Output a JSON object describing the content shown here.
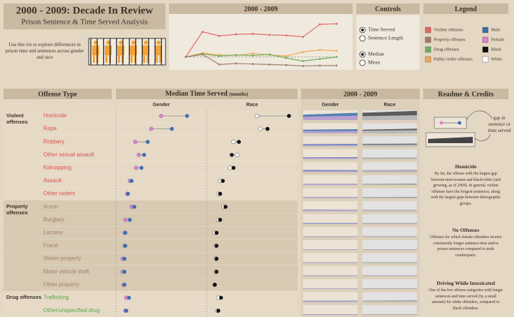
{
  "header": {
    "title": "2000 - 2009: Decade In Review",
    "subtitle": "Prison Sentence & Time Served Analysis",
    "description": "Use this viz to explore differences in prison time and sentences across gender and race"
  },
  "trend": {
    "title": "2000 - 2009",
    "ylim": [
      0,
      100
    ],
    "series": [
      {
        "color": "#e06666",
        "values": [
          20,
          70,
          62,
          65,
          66,
          64,
          63,
          60,
          85,
          86
        ]
      },
      {
        "color": "#f2a65a",
        "values": [
          20,
          28,
          24,
          23,
          27,
          24,
          22,
          30,
          34,
          32
        ]
      },
      {
        "color": "#6aaf5a",
        "values": [
          20,
          26,
          22,
          24,
          23,
          25,
          18,
          12,
          16,
          20
        ]
      },
      {
        "color": "#a07d6a",
        "values": [
          20,
          25,
          5,
          7,
          6,
          5,
          4,
          2,
          3,
          3
        ]
      }
    ]
  },
  "controls": {
    "title": "Controls",
    "measure": [
      "Time Served",
      "Sentence Length"
    ],
    "selected_measure": 0,
    "statistic": [
      "Median",
      "Mean"
    ],
    "selected_statistic": 0
  },
  "legend": {
    "title": "Legend",
    "items": [
      {
        "label": "Violent offenses",
        "color": "#e06666"
      },
      {
        "label": "Property offenses",
        "color": "#a07d6a"
      },
      {
        "label": "Drug offenses",
        "color": "#6aaf5a"
      },
      {
        "label": "Public-order offenses",
        "color": "#f2a65a"
      },
      {
        "label": "Male",
        "color": "#3c6fb0"
      },
      {
        "label": "Female",
        "color": "#d982d3"
      },
      {
        "label": "Black",
        "color": "#111111"
      },
      {
        "label": "White",
        "color": "#ffffff"
      }
    ]
  },
  "offense_panel": {
    "title": "Offense Type",
    "groups": [
      {
        "label": "Violent offenses",
        "color": "#d9534f",
        "rows": [
          "Homicide",
          "Rape",
          "Robbery",
          "Other sexual assault",
          "Kidnapping",
          "Assault",
          "Other violent"
        ]
      },
      {
        "label": "Property offenses",
        "color": "#a08070",
        "rows": [
          "Arson",
          "Burglary",
          "Larceny",
          "Fraud",
          "Stolen property",
          "Motor vehicle theft",
          "Other property"
        ]
      },
      {
        "label": "Drug offenses",
        "color": "#5aa843",
        "rows": [
          "Trafficking",
          "Other/unspecified drug"
        ]
      }
    ]
  },
  "time_panel": {
    "title": "Median Time Served",
    "unit": "(months)",
    "gender_label": "Gender",
    "race_label": "Race",
    "xlim": [
      0,
      100
    ],
    "rows": [
      {
        "female": 49,
        "male": 78,
        "white": 56,
        "black": 92
      },
      {
        "female": 38,
        "male": 61,
        "white": 60,
        "black": 68
      },
      {
        "female": 20,
        "male": 34,
        "white": 30,
        "black": 36
      },
      {
        "female": 24,
        "male": 30,
        "white": 34,
        "black": 28
      },
      {
        "female": 21,
        "male": 27,
        "white": 26,
        "black": 30
      },
      {
        "female": 14,
        "male": 16,
        "white": 15,
        "black": 18
      },
      {
        "female": 11,
        "male": 12,
        "white": 13,
        "black": 15
      },
      {
        "female": 16,
        "male": 19,
        "white": 19,
        "black": 21
      },
      {
        "female": 9,
        "male": 14,
        "white": 13,
        "black": 15
      },
      {
        "female": 8,
        "male": 9,
        "white": 9,
        "black": 11
      },
      {
        "female": 8,
        "male": 9,
        "white": 10,
        "black": 11
      },
      {
        "female": 6,
        "male": 8,
        "white": 10,
        "black": 11
      },
      {
        "female": 6,
        "male": 8,
        "white": 10,
        "black": 11
      },
      {
        "female": 7,
        "male": 8,
        "white": 9,
        "black": 9
      },
      {
        "female": 10,
        "male": 13,
        "white": 13,
        "black": 16
      },
      {
        "female": 9,
        "male": 10,
        "white": 12,
        "black": 13
      }
    ]
  },
  "spark_panel": {
    "title": "2000 - 2009",
    "gender_label": "Gender",
    "race_label": "Race",
    "ylim": [
      0,
      100
    ],
    "rows": [
      {
        "male": [
          55,
          75
        ],
        "female": [
          35,
          45
        ],
        "black": [
          75,
          95
        ],
        "white": [
          40,
          50
        ]
      },
      {
        "male": [
          35,
          40
        ],
        "female": [
          20,
          22
        ],
        "black": [
          35,
          45
        ],
        "white": [
          25,
          30
        ]
      },
      {
        "male": [
          20,
          22
        ],
        "female": [
          12,
          12
        ],
        "black": [
          22,
          25
        ],
        "white": [
          15,
          16
        ]
      },
      {
        "male": [
          18,
          20
        ],
        "female": [
          14,
          15
        ],
        "black": [
          15,
          16
        ],
        "white": [
          18,
          20
        ]
      },
      {
        "male": [
          22,
          20
        ],
        "female": [
          14,
          14
        ],
        "black": [
          18,
          20
        ],
        "white": [
          16,
          16
        ]
      },
      {
        "male": [
          12,
          12
        ],
        "female": [
          10,
          9
        ],
        "black": [
          12,
          13
        ],
        "white": [
          10,
          10
        ]
      },
      {
        "male": [
          10,
          10
        ],
        "female": [
          8,
          8
        ],
        "black": [
          10,
          11
        ],
        "white": [
          9,
          9
        ]
      },
      {
        "male": [
          14,
          12
        ],
        "female": [
          10,
          10
        ],
        "black": [
          12,
          12
        ],
        "white": [
          11,
          11
        ]
      },
      {
        "male": [
          10,
          10
        ],
        "female": [
          7,
          7
        ],
        "black": [
          10,
          10
        ],
        "white": [
          9,
          9
        ]
      },
      {
        "male": [
          6,
          6
        ],
        "female": [
          5,
          5
        ],
        "black": [
          6,
          6
        ],
        "white": [
          5,
          5
        ]
      },
      {
        "male": [
          6,
          6
        ],
        "female": [
          5,
          5
        ],
        "black": [
          6,
          6
        ],
        "white": [
          5,
          5
        ]
      },
      {
        "male": [
          6,
          6
        ],
        "female": [
          5,
          5
        ],
        "black": [
          6,
          6
        ],
        "white": [
          5,
          5
        ]
      },
      {
        "male": [
          6,
          6
        ],
        "female": [
          5,
          5
        ],
        "black": [
          6,
          6
        ],
        "white": [
          5,
          5
        ]
      },
      {
        "male": [
          5,
          5
        ],
        "female": [
          4,
          4
        ],
        "black": [
          5,
          5
        ],
        "white": [
          4,
          4
        ]
      },
      {
        "male": [
          12,
          13
        ],
        "female": [
          9,
          9
        ],
        "black": [
          12,
          14
        ],
        "white": [
          10,
          10
        ]
      },
      {
        "male": [
          7,
          7
        ],
        "female": [
          5,
          5
        ],
        "black": [
          7,
          7
        ],
        "white": [
          6,
          6
        ]
      }
    ]
  },
  "readme": {
    "title": "Readme & Credits",
    "gap_note": "gap in sentence or time served",
    "sections": [
      {
        "title": "Homicide",
        "text": "By far, the offense with the largest gap between men/women and black/white (and growing, as of 2009). In general, violent offenses have the longest sentences, along with the largest gaps between demographic groups."
      },
      {
        "title": "No Offenses",
        "text": "Offenses for which female offenders receive consistently longer sentence time and/or prison sentences compared to male counterparts."
      },
      {
        "title": "Driving While Intoxicated",
        "text": "One of the few offense categories with longer sentences and time served (by a small amount) for white offenders, compared to black offenders."
      }
    ]
  }
}
